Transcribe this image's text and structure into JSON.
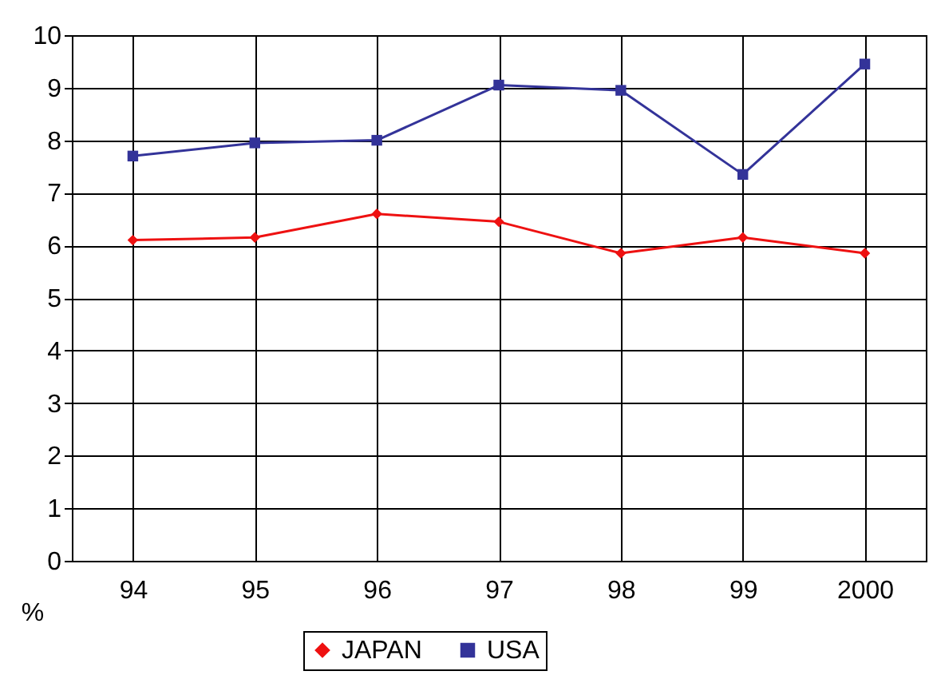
{
  "chart_data": {
    "type": "line",
    "categories": [
      "94",
      "95",
      "96",
      "97",
      "98",
      "99",
      "2000"
    ],
    "series": [
      {
        "name": "JAPAN",
        "color": "#ee1111",
        "marker": "diamond",
        "values": [
          6.1,
          6.15,
          6.6,
          6.45,
          5.85,
          6.15,
          5.85
        ]
      },
      {
        "name": "USA",
        "color": "#333399",
        "marker": "square",
        "values": [
          7.7,
          7.95,
          8.0,
          9.05,
          8.95,
          7.35,
          9.45
        ]
      }
    ],
    "ylabel": "%",
    "ylim": [
      0,
      10
    ],
    "yticks": [
      0,
      1,
      2,
      3,
      4,
      5,
      6,
      7,
      8,
      9,
      10
    ],
    "grid": true,
    "legend": "bottom"
  }
}
